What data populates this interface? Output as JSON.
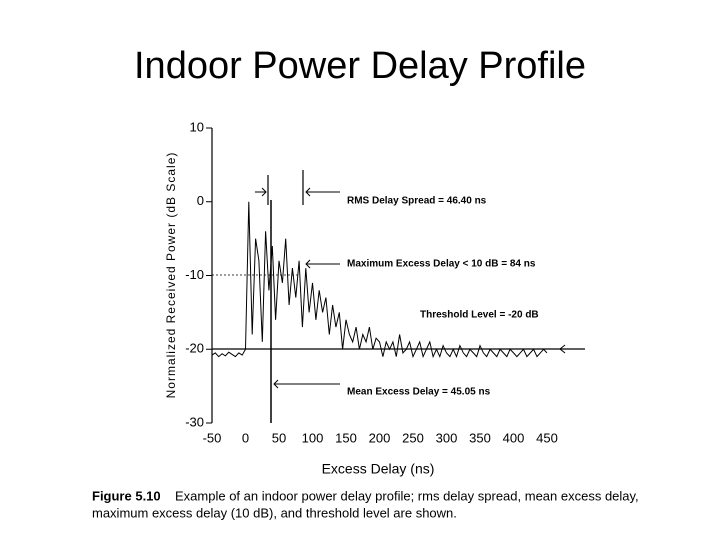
{
  "chart_data": {
    "type": "line",
    "title": "Indoor Power Delay Profile",
    "ylabel": "Normalized Received Power (dB Scale)",
    "xlabel": "Excess Delay (ns)",
    "color": "#000000",
    "xlim": [
      -50,
      450
    ],
    "xticks": [
      -50,
      0,
      50,
      100,
      150,
      200,
      250,
      300,
      350,
      400,
      450
    ],
    "ylim": [
      -30,
      10
    ],
    "yticks": [
      -30,
      -20,
      -10,
      0,
      10
    ],
    "x": [
      -50,
      -45,
      -40,
      -35,
      -30,
      -25,
      -20,
      -15,
      -10,
      -5,
      0,
      5,
      10,
      15,
      20,
      25,
      30,
      35,
      40,
      45,
      50,
      55,
      60,
      65,
      70,
      75,
      80,
      85,
      90,
      95,
      100,
      105,
      110,
      115,
      120,
      125,
      130,
      135,
      140,
      145,
      150,
      155,
      160,
      165,
      170,
      175,
      180,
      185,
      190,
      195,
      200,
      205,
      210,
      215,
      220,
      225,
      230,
      235,
      240,
      245,
      250,
      255,
      260,
      265,
      270,
      275,
      280,
      285,
      290,
      295,
      300,
      305,
      310,
      315,
      320,
      325,
      330,
      335,
      340,
      345,
      350,
      355,
      360,
      365,
      370,
      375,
      380,
      385,
      390,
      395,
      400,
      405,
      410,
      415,
      420,
      425,
      430,
      435,
      440,
      445,
      450
    ],
    "values": [
      -20.8,
      -20.5,
      -21,
      -20.6,
      -20.9,
      -20.4,
      -20.7,
      -21,
      -20.5,
      -20.8,
      -20,
      0,
      -18,
      -5,
      -8,
      -19,
      -4,
      -12,
      -6,
      -16,
      -8,
      -11,
      -5,
      -14,
      -9,
      -13,
      -8,
      -17,
      -9,
      -15,
      -11,
      -16,
      -12,
      -15,
      -13,
      -18,
      -14,
      -17,
      -15,
      -20,
      -16,
      -18,
      -19,
      -17,
      -20,
      -18,
      -19,
      -17,
      -20,
      -18.5,
      -19,
      -21,
      -19,
      -20,
      -19,
      -21,
      -18,
      -20.5,
      -20,
      -19,
      -21,
      -20,
      -19,
      -21,
      -20,
      -19,
      -21,
      -20,
      -21,
      -19.5,
      -20.5,
      -21,
      -20,
      -21,
      -19.5,
      -20.5,
      -21,
      -20,
      -20.5,
      -21,
      -19.5,
      -20.5,
      -21,
      -20,
      -20.5,
      -21,
      -20,
      -20.5,
      -21,
      -20,
      -20.5,
      -21,
      -20.5,
      -20,
      -21,
      -20.5,
      -20,
      -21,
      -20.5,
      -20,
      -20.5
    ],
    "annotations": [
      "RMS Delay Spread = 46.40 ns",
      "Maximum Excess Delay < 10 dB = 84 ns",
      "Threshold Level = -20 dB",
      "Mean Excess Delay = 45.05 ns"
    ]
  },
  "caption": {
    "label": "Figure 5.10",
    "lines": [
      "Example of an indoor power delay profile; rms delay spread, mean excess delay,",
      "maximum excess delay (10 dB), and threshold level are shown."
    ]
  }
}
